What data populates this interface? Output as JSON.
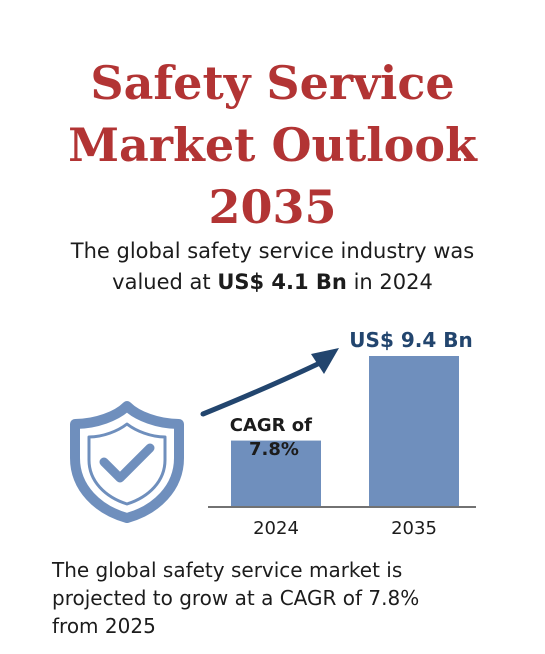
{
  "title_lines": [
    "Safety Service",
    "Market Outlook",
    "2035"
  ],
  "intro": {
    "line1": "The global safety service industry was",
    "line2_pre": "valued at ",
    "line2_bold": "US$  4.1 Bn",
    "line2_post": " in 2024"
  },
  "cagr_label_lines": [
    "CAGR of",
    "7.8%"
  ],
  "value_label": "US$ 9.4 Bn",
  "colors": {
    "title": "#b23434",
    "bar": "#6f8fbd",
    "icon": "#6f8fbd",
    "arrow": "#22456e",
    "axis": "#444444"
  },
  "icon": "shield-check-icon",
  "chart_data": {
    "type": "bar",
    "categories": [
      "2024",
      "2035"
    ],
    "values": [
      4.1,
      9.4
    ],
    "unit": "US$ Bn"
  },
  "outro_lines": [
    "The global safety service market is",
    "projected to grow at a CAGR of 7.8%",
    "from 2025"
  ]
}
